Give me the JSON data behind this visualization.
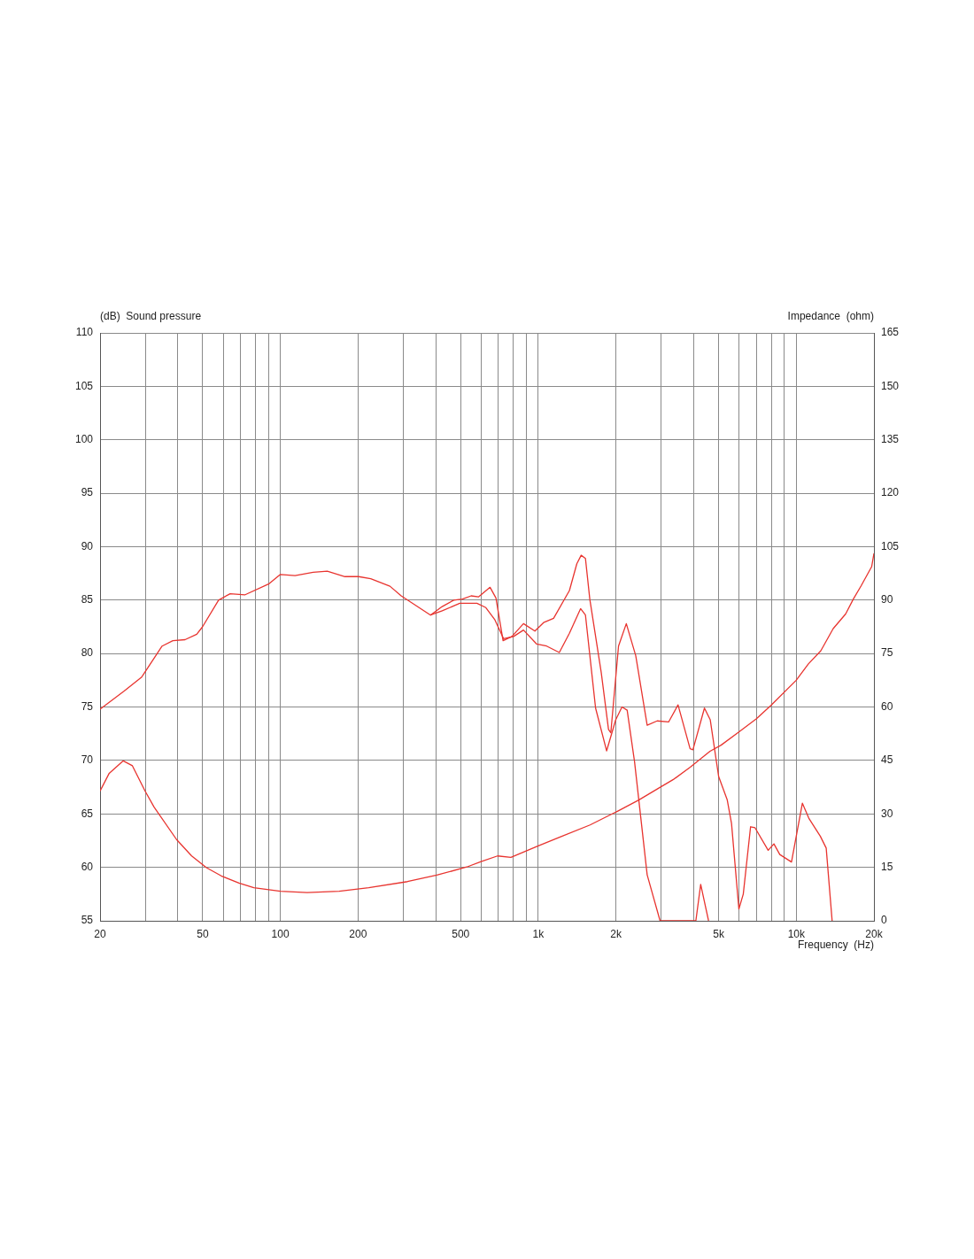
{
  "chart_data": {
    "type": "line",
    "xlabel": "Frequency  (Hz)",
    "ylabel": "(dB)  Sound pressure",
    "y2label": "Impedance  (ohm)",
    "log": "x",
    "grid": true,
    "legend": false,
    "marker": "none",
    "line_style": "solid",
    "xlim": [
      20,
      20000
    ],
    "xticks": [
      20,
      {
        "value": 30,
        "label": null
      },
      {
        "value": 40,
        "label": null
      },
      50,
      {
        "value": 60,
        "label": null
      },
      {
        "value": 70,
        "label": null
      },
      {
        "value": 80,
        "label": null
      },
      {
        "value": 90,
        "label": null
      },
      100,
      200,
      {
        "value": 300,
        "label": null
      },
      {
        "value": 400,
        "label": null
      },
      500,
      {
        "value": 600,
        "label": null
      },
      {
        "value": 700,
        "label": null
      },
      {
        "value": 800,
        "label": null
      },
      {
        "value": 900,
        "label": null
      },
      {
        "value": 1000,
        "label": "1k"
      },
      {
        "value": 2000,
        "label": "2k"
      },
      {
        "value": 3000,
        "label": null
      },
      {
        "value": 4000,
        "label": null
      },
      {
        "value": 5000,
        "label": "5k"
      },
      {
        "value": 6000,
        "label": null
      },
      {
        "value": 7000,
        "label": null
      },
      {
        "value": 8000,
        "label": null
      },
      {
        "value": 9000,
        "label": null
      },
      {
        "value": 10000,
        "label": "10k"
      },
      {
        "value": 20000,
        "label": "20k"
      }
    ],
    "ylim": [
      55,
      110
    ],
    "yticks": [
      55,
      60,
      65,
      70,
      75,
      80,
      85,
      90,
      95,
      100,
      105,
      110
    ],
    "y2lim": [
      0,
      165
    ],
    "y2ticks": [
      0,
      15,
      30,
      45,
      60,
      75,
      90,
      105,
      120,
      135,
      150,
      165
    ],
    "series": [
      {
        "color": "#e8342f",
        "x": [
          20,
          24.8,
          29,
          34.8,
          38.3,
          42.7,
          47.4,
          49.9,
          57.6,
          63.9,
          73,
          90,
          100,
          114,
          134,
          152,
          178,
          201,
          224,
          266,
          294,
          382,
          424,
          470,
          508,
          549,
          586,
          650,
          685,
          730,
          790,
          876,
          970,
          1048,
          1146,
          1320,
          1410,
          1466,
          1523,
          1583,
          1754,
          1871,
          1910,
          2046,
          2193,
          2386,
          2642,
          2888,
          3199,
          3480,
          3875,
          3975,
          4405,
          4640,
          5000,
          5400,
          5610,
          5990,
          6230,
          6650,
          6920,
          7780,
          8190,
          8630,
          9580,
          10560,
          11180,
          12400,
          13060,
          13770
        ],
        "values": [
          74.8,
          76.5,
          77.8,
          80.7,
          81.2,
          81.3,
          81.8,
          82.5,
          85,
          85.6,
          85.5,
          86.5,
          87.4,
          87.3,
          87.6,
          87.7,
          87.2,
          87.2,
          87,
          86.3,
          85.4,
          83.6,
          84.4,
          85,
          85.1,
          85.4,
          85.3,
          86.2,
          85.2,
          81.2,
          81.6,
          82.8,
          82.1,
          82.9,
          83.3,
          85.9,
          88.4,
          89.2,
          88.9,
          85.1,
          78.2,
          72.9,
          72.6,
          80.7,
          82.8,
          79.8,
          73.3,
          73.7,
          73.6,
          75.2,
          71.1,
          71,
          74.9,
          73.8,
          68.5,
          66.3,
          64.1,
          56.1,
          57.5,
          63.8,
          63.7,
          61.6,
          62.2,
          61.2,
          60.5,
          66,
          64.6,
          62.9,
          61.8,
          55
        ]
      },
      {
        "color": "#e8342f",
        "x": [
          382,
          424,
          496,
          578,
          626,
          677,
          733,
          802,
          876,
          984,
          1077,
          1206,
          1320,
          1458,
          1523,
          1667,
          1840,
          1995,
          2110,
          2210,
          2360,
          2642,
          2964,
          4080,
          4260,
          4570
        ],
        "values": [
          83.6,
          84,
          84.7,
          84.7,
          84.3,
          83.2,
          81.4,
          81.6,
          82.2,
          80.9,
          80.7,
          80.1,
          81.9,
          84.2,
          83.6,
          74.9,
          70.9,
          73.8,
          75,
          74.7,
          69.9,
          59.3,
          55,
          55,
          58.4,
          55
        ]
      },
      {
        "color": "#e8342f",
        "axis": "y2",
        "x": [
          20,
          21.7,
          24.6,
          26.7,
          29.9,
          32.4,
          39.6,
          45.3,
          51.7,
          59,
          69.1,
          78.9,
          100,
          127,
          169,
          220,
          311,
          404,
          528,
          600,
          695,
          783,
          990,
          1220,
          1587,
          1956,
          2010,
          2450,
          2940,
          3360,
          3880,
          4630,
          5110,
          5990,
          7010,
          7990,
          9990,
          11140,
          12450,
          13900,
          15530,
          16640,
          17830,
          19600,
          20000
        ],
        "values": [
          36.4,
          41.4,
          44.9,
          43.5,
          36.4,
          31.9,
          22.8,
          18.2,
          14.9,
          12.6,
          10.6,
          9.3,
          8.3,
          7.9,
          8.3,
          9.3,
          11,
          12.8,
          15.1,
          16.6,
          18.2,
          17.8,
          20.9,
          23.6,
          26.9,
          30.2,
          30.6,
          33.9,
          37.3,
          39.8,
          43.1,
          47.6,
          49.3,
          53,
          56.7,
          60.5,
          67.5,
          72.1,
          75.8,
          82,
          86.1,
          90.3,
          94,
          99.4,
          103.1
        ]
      }
    ]
  }
}
